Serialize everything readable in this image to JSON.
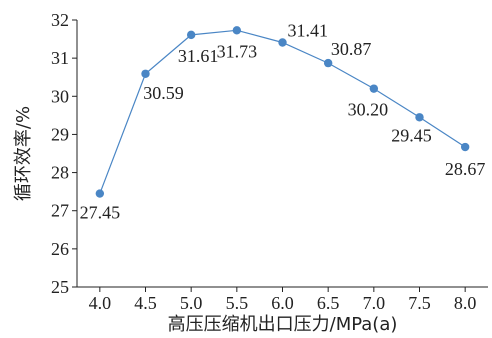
{
  "chart_data": {
    "type": "line",
    "xlabel": "高压压缩机出口压力/MPa(a)",
    "ylabel": "循环效率/%",
    "x_ticks": [
      "4.0",
      "4.5",
      "5.0",
      "5.5",
      "6.0",
      "6.5",
      "7.0",
      "7.5",
      "8.0"
    ],
    "y_ticks": [
      "25",
      "26",
      "27",
      "28",
      "29",
      "30",
      "31",
      "32"
    ],
    "xlim": [
      3.75,
      8.25
    ],
    "ylim": [
      25,
      32
    ],
    "grid": false,
    "legend": "none",
    "series": [
      {
        "x": [
          4.0,
          4.5,
          5.0,
          5.5,
          6.0,
          6.5,
          7.0,
          7.5,
          8.0
        ],
        "y": [
          27.45,
          30.59,
          31.61,
          31.73,
          31.41,
          30.87,
          30.2,
          29.45,
          28.67
        ],
        "labels": [
          "27.45",
          "30.59",
          "31.61",
          "31.73",
          "31.41",
          "30.87",
          "30.20",
          "29.45",
          "28.67"
        ],
        "color": "#4a86c5"
      }
    ]
  }
}
